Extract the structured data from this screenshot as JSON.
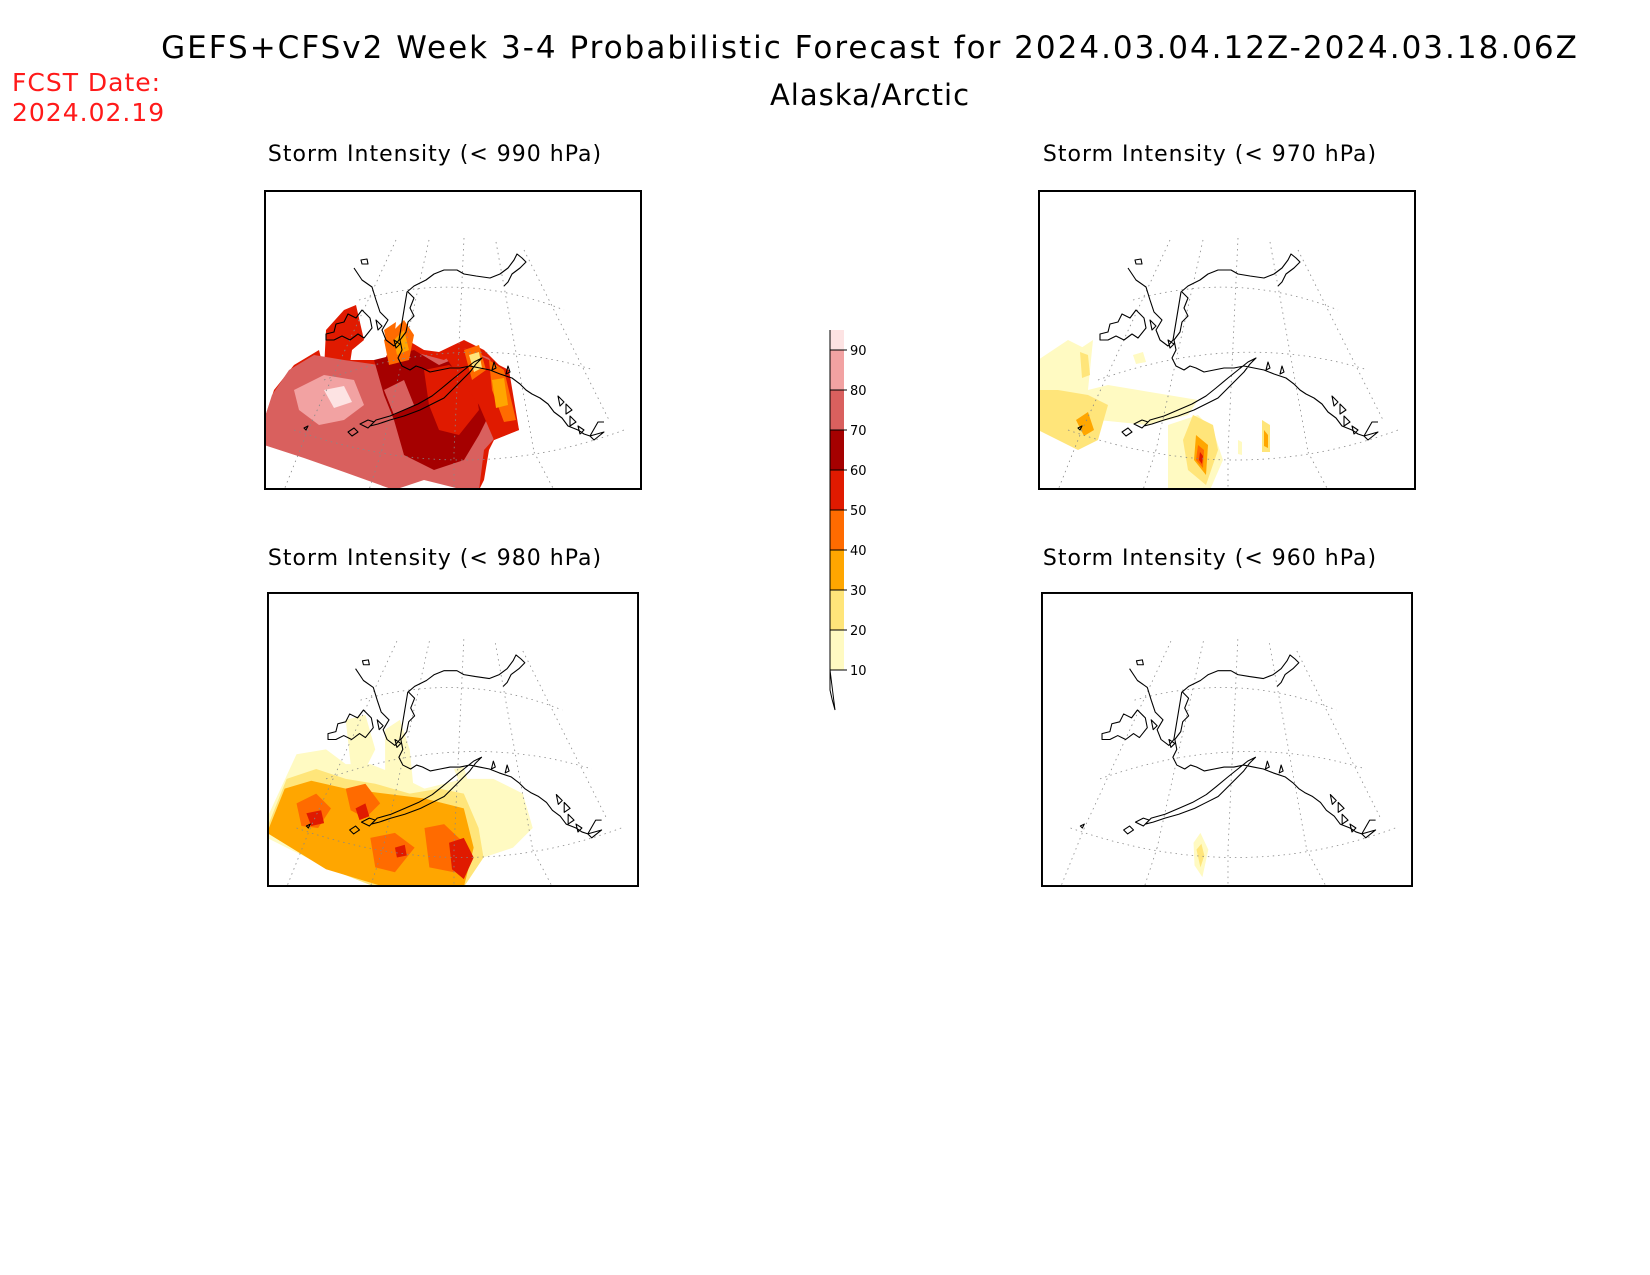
{
  "title": "GEFS+CFSv2 Week 3-4 Probabilistic Forecast for 2024.03.04.12Z-2024.03.18.06Z",
  "region": "Alaska/Arctic",
  "fcst_date_label": "FCST Date:",
  "fcst_date_value": "2024.02.19",
  "panels": [
    {
      "title": "Storm Intensity (< 990 hPa)",
      "max_probability_percent": 90
    },
    {
      "title": "Storm Intensity (< 970 hPa)",
      "max_probability_percent": 60
    },
    {
      "title": "Storm Intensity (< 980 hPa)",
      "max_probability_percent": 60
    },
    {
      "title": "Storm Intensity (< 960 hPa)",
      "max_probability_percent": 20
    }
  ],
  "colorbar": {
    "levels": [
      10,
      20,
      30,
      40,
      50,
      60,
      70,
      80,
      90
    ],
    "colors": [
      "#fffac2",
      "#ffe57a",
      "#ffa600",
      "#ff6b00",
      "#e01a00",
      "#a50000",
      "#d9605e",
      "#f2a2a2",
      "#fde3e3"
    ]
  },
  "colors": {
    "fcst_date": "#ff1a1a",
    "coastline": "#000000",
    "graticule": "#888888"
  }
}
